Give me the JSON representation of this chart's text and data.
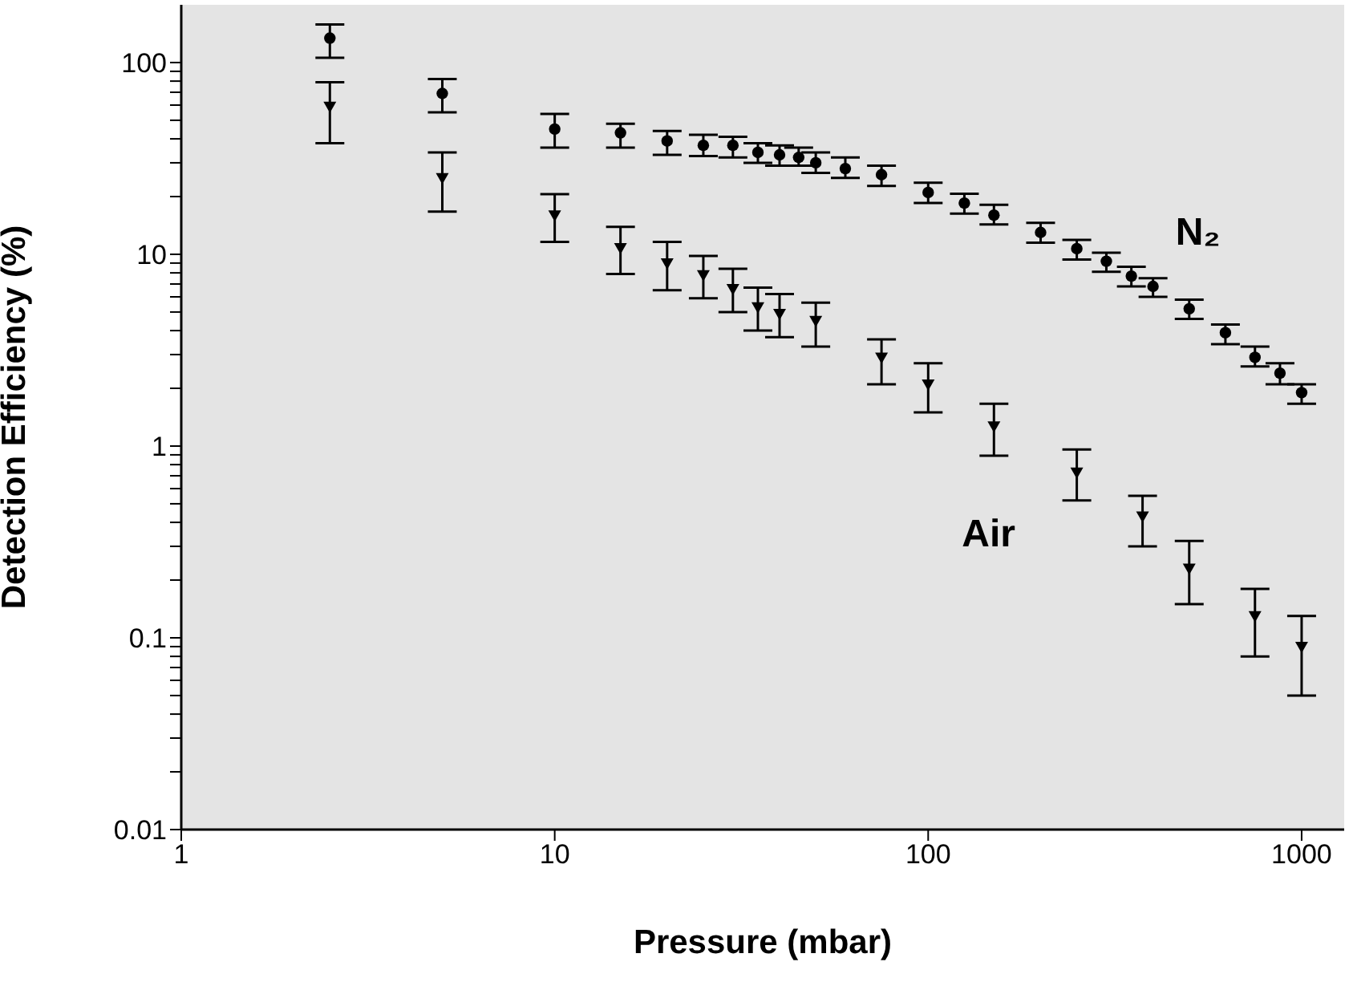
{
  "chart_data": {
    "type": "scatter",
    "xlabel": "Pressure (mbar)",
    "ylabel": "Detection Efficiency (%)",
    "log": "xy",
    "grid": false,
    "legend": false,
    "xlim": [
      1,
      1300
    ],
    "xticks": [
      1,
      10,
      100,
      1000
    ],
    "ylim": [
      0.01,
      200
    ],
    "yticks": [
      0.01,
      {
        "value": 0.02,
        "label": null
      },
      {
        "value": 0.03,
        "label": null
      },
      {
        "value": 0.04,
        "label": null
      },
      {
        "value": 0.05,
        "label": null
      },
      {
        "value": 0.06,
        "label": null
      },
      {
        "value": 0.07,
        "label": null
      },
      {
        "value": 0.08,
        "label": null
      },
      {
        "value": 0.09,
        "label": null
      },
      0.1,
      {
        "value": 0.2,
        "label": null
      },
      {
        "value": 0.3,
        "label": null
      },
      {
        "value": 0.4,
        "label": null
      },
      {
        "value": 0.5,
        "label": null
      },
      {
        "value": 0.6,
        "label": null
      },
      {
        "value": 0.7,
        "label": null
      },
      {
        "value": 0.8,
        "label": null
      },
      {
        "value": 0.9,
        "label": null
      },
      1,
      {
        "value": 2,
        "label": null
      },
      {
        "value": 3,
        "label": null
      },
      {
        "value": 4,
        "label": null
      },
      {
        "value": 5,
        "label": null
      },
      {
        "value": 6,
        "label": null
      },
      {
        "value": 7,
        "label": null
      },
      {
        "value": 8,
        "label": null
      },
      {
        "value": 9,
        "label": null
      },
      10,
      {
        "value": 20,
        "label": null
      },
      {
        "value": 30,
        "label": null
      },
      {
        "value": 40,
        "label": null
      },
      {
        "value": 50,
        "label": null
      },
      {
        "value": 60,
        "label": null
      },
      {
        "value": 70,
        "label": null
      },
      {
        "value": 80,
        "label": null
      },
      {
        "value": 90,
        "label": null
      },
      100
    ],
    "series": [
      {
        "name": "N₂",
        "color": "#000000",
        "marker": "circle",
        "x": [
          2.5,
          5,
          10,
          15,
          20,
          25,
          30,
          35,
          40,
          45,
          50,
          60,
          75,
          100,
          125,
          150,
          200,
          250,
          300,
          350,
          400,
          500,
          625,
          750,
          875,
          1000
        ],
        "values": [
          134,
          69,
          45,
          43,
          39,
          37,
          37,
          34,
          33,
          32,
          30,
          28,
          26,
          21,
          18.5,
          16,
          13,
          10.7,
          9.2,
          7.7,
          6.8,
          5.2,
          3.9,
          2.9,
          2.4,
          1.9
        ],
        "errors": [
          [
            106,
            158
          ],
          [
            55,
            82
          ],
          [
            36,
            54
          ],
          [
            36,
            48
          ],
          [
            33,
            44
          ],
          [
            32.5,
            42
          ],
          [
            32,
            41
          ],
          [
            30,
            38
          ],
          [
            29,
            37
          ],
          [
            29,
            36
          ],
          [
            26.6,
            34
          ],
          [
            25,
            32
          ],
          [
            22.7,
            29
          ],
          [
            18.5,
            23.6
          ],
          [
            16.3,
            20.7
          ],
          [
            14.3,
            18.1
          ],
          [
            11.5,
            14.6
          ],
          [
            9.4,
            11.9
          ],
          [
            8.1,
            10.2
          ],
          [
            6.8,
            8.6
          ],
          [
            6.0,
            7.5
          ],
          [
            4.6,
            5.8
          ],
          [
            3.4,
            4.3
          ],
          [
            2.6,
            3.3
          ],
          [
            2.1,
            2.7
          ],
          [
            1.66,
            2.1
          ]
        ]
      },
      {
        "name": "Air",
        "color": "#000000",
        "marker": "triangle",
        "x": [
          2.5,
          5,
          10,
          15,
          20,
          25,
          30,
          35,
          40,
          50,
          75,
          100,
          150,
          250,
          375,
          500,
          750,
          1000
        ],
        "values": [
          59,
          25,
          16,
          10.8,
          9,
          7.8,
          6.6,
          5.3,
          4.9,
          4.5,
          2.9,
          2.1,
          1.27,
          0.73,
          0.43,
          0.23,
          0.13,
          0.09
        ],
        "errors": [
          [
            38,
            79
          ],
          [
            16.7,
            34
          ],
          [
            11.6,
            20.6
          ],
          [
            7.9,
            13.9
          ],
          [
            6.5,
            11.6
          ],
          [
            5.9,
            9.8
          ],
          [
            5,
            8.4
          ],
          [
            4,
            6.7
          ],
          [
            3.7,
            6.2
          ],
          [
            3.3,
            5.6
          ],
          [
            2.1,
            3.6
          ],
          [
            1.5,
            2.7
          ],
          [
            0.89,
            1.66
          ],
          [
            0.52,
            0.96
          ],
          [
            0.3,
            0.55
          ],
          [
            0.15,
            0.32
          ],
          [
            0.08,
            0.18
          ],
          [
            0.05,
            0.13
          ]
        ]
      }
    ]
  }
}
